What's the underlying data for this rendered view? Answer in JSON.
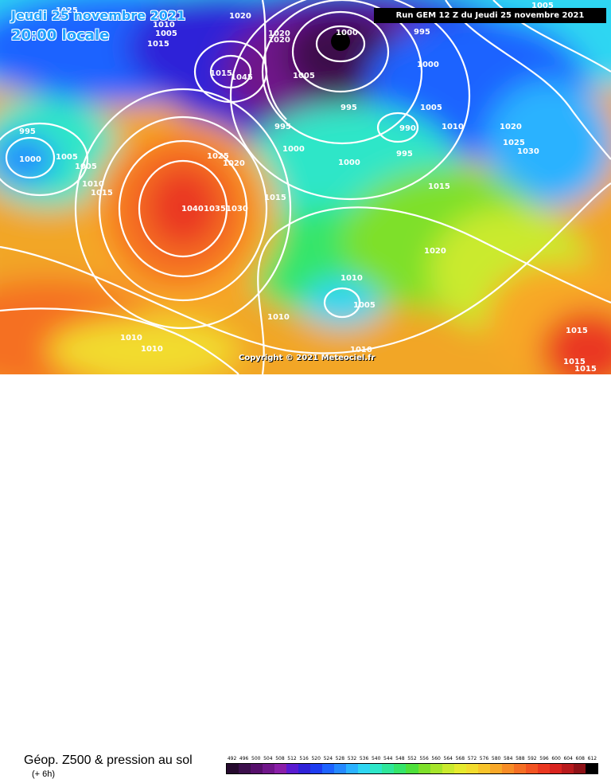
{
  "header": {
    "date_line": "Jeudi 25 novembre 2021",
    "time_line": "20:00 locale",
    "run_info": "Run GEM 12 Z du Jeudi 25 novembre 2021"
  },
  "map": {
    "isobar_labels": [
      "1025",
      "1000",
      "1020",
      "1005",
      "1010",
      "1015",
      "995",
      "1000",
      "1020",
      "1045",
      "1005",
      "995",
      "1000",
      "1005",
      "1015",
      "1020",
      "995",
      "1005",
      "990",
      "1010",
      "1020",
      "1025",
      "995",
      "1030",
      "1000",
      "1025",
      "1020",
      "1005",
      "995",
      "1000",
      "1005",
      "1010",
      "1015",
      "1015",
      "1040",
      "1035",
      "1030",
      "1015",
      "1020",
      "1010",
      "1005",
      "1010",
      "1010",
      "1010",
      "1010",
      "1015",
      "1015",
      "1015"
    ],
    "pressure_centers": [
      {
        "type": "low",
        "value": "1000"
      },
      {
        "type": "high",
        "value": "1040"
      }
    ],
    "copyright": "Copyright © 2021 Meteociel.fr"
  },
  "footer": {
    "title": "Géop. Z500 & pression au sol",
    "lead_time": "(+ 6h)"
  },
  "legend": {
    "ticks": [
      "492",
      "496",
      "500",
      "504",
      "508",
      "512",
      "516",
      "520",
      "524",
      "528",
      "532",
      "536",
      "540",
      "544",
      "548",
      "552",
      "556",
      "560",
      "564",
      "568",
      "572",
      "576",
      "580",
      "584",
      "588",
      "592",
      "596",
      "600",
      "604",
      "608",
      "612"
    ],
    "colors": [
      "#260a2e",
      "#3c0f4c",
      "#560f6b",
      "#70168a",
      "#8a1fa8",
      "#5a1bd0",
      "#2f22d8",
      "#1e3cf0",
      "#1e63ff",
      "#2589ff",
      "#2bb2ff",
      "#2fd6f2",
      "#2ee6c8",
      "#2fe69a",
      "#35e56a",
      "#4ee03b",
      "#7ee02b",
      "#a6e52b",
      "#caea2e",
      "#e6ea2e",
      "#f2dc2e",
      "#f8c42b",
      "#f8a828",
      "#f78c26",
      "#f56f24",
      "#f25422",
      "#ea3820",
      "#d9241f",
      "#b81a1c",
      "#8e1217",
      "#000000"
    ]
  }
}
